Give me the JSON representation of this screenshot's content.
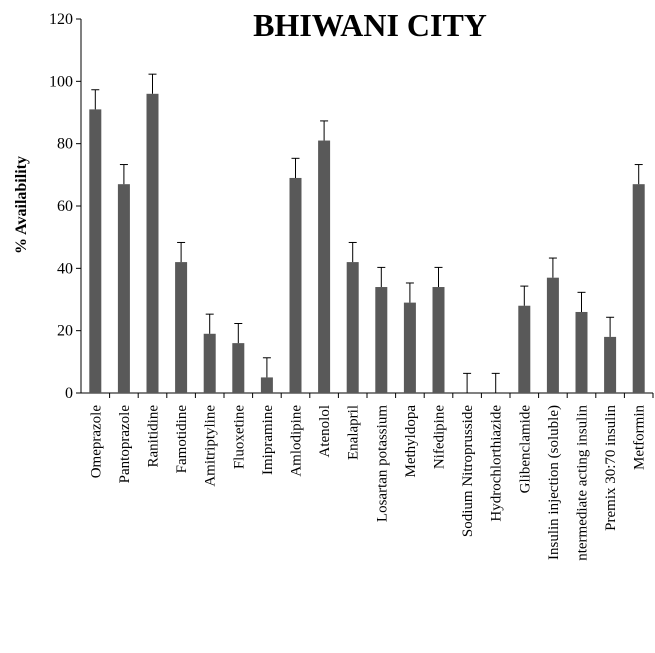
{
  "chart_data": {
    "type": "bar",
    "title": "BHIWANI CITY",
    "y_label": "% Availability",
    "categories": [
      "Omeprazole",
      "Pantoprazole",
      "Ranitidine",
      "Famotidine",
      "Amitriptyline",
      "Fluoxetine",
      "Imipramine",
      "Amlodipine",
      "Atenolol",
      "Enalapril",
      "Losartan potassium",
      "Methyldopa",
      "Nifedipine",
      "Sodium Nitroprusside",
      "Hydrochlorthiazide",
      "Glibenclamide",
      "Insulin injection (soluble)",
      "ntermediate acting insulin",
      "Premix 30:70 insulin",
      "Metformin"
    ],
    "values": [
      91,
      67,
      96,
      42,
      19,
      16,
      5,
      69,
      81,
      42,
      34,
      29,
      34,
      0,
      0,
      28,
      37,
      26,
      18,
      67
    ],
    "errors": [
      6.3,
      6.3,
      6.3,
      6.3,
      6.3,
      6.3,
      6.3,
      6.3,
      6.3,
      6.3,
      6.3,
      6.3,
      6.3,
      6.3,
      6.3,
      6.3,
      6.3,
      6.3,
      6.3,
      6.3
    ],
    "color": "#595959",
    "ylim": [
      0,
      120
    ],
    "yticks": [
      0,
      20,
      40,
      60,
      80,
      100,
      120
    ],
    "grid": false
  }
}
